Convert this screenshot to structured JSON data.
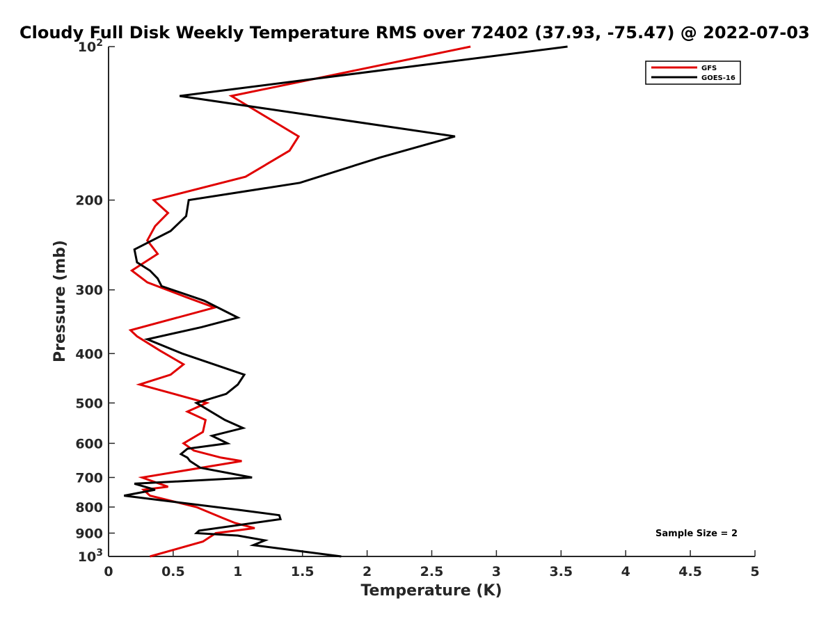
{
  "chart_data": {
    "type": "line",
    "title": "Cloudy Full Disk Weekly Temperature RMS over 72402 (37.93, -75.47) @ 2022-07-03",
    "xlabel": "Temperature (K)",
    "ylabel": "Pressure (mb)",
    "xlim": [
      0,
      5
    ],
    "ylim": [
      100,
      1000
    ],
    "y_scale": "log",
    "y_reversed": true,
    "x_ticks": [
      "0",
      "0.5",
      "1",
      "1.5",
      "2",
      "2.5",
      "3",
      "3.5",
      "4",
      "4.5",
      "5"
    ],
    "y_ticks": [
      {
        "value": 100,
        "base": "10",
        "exp": "2"
      },
      {
        "value": 200,
        "label": "200"
      },
      {
        "value": 300,
        "label": "300"
      },
      {
        "value": 400,
        "label": "400"
      },
      {
        "value": 500,
        "label": "500"
      },
      {
        "value": 600,
        "label": "600"
      },
      {
        "value": 700,
        "label": "700"
      },
      {
        "value": 800,
        "label": "800"
      },
      {
        "value": 900,
        "label": "900"
      },
      {
        "value": 1000,
        "base": "10",
        "exp": "3"
      }
    ],
    "legend_position": "top-right",
    "annotation": "Sample Size = 2",
    "series": [
      {
        "name": "GFS",
        "color": "#e00000",
        "points": [
          [
            2.8,
            100
          ],
          [
            0.95,
            125
          ],
          [
            1.47,
            150
          ],
          [
            1.4,
            160
          ],
          [
            1.06,
            180
          ],
          [
            0.35,
            200
          ],
          [
            0.46,
            212
          ],
          [
            0.36,
            225
          ],
          [
            0.3,
            240
          ],
          [
            0.38,
            255
          ],
          [
            0.18,
            275
          ],
          [
            0.3,
            290
          ],
          [
            0.6,
            310
          ],
          [
            0.82,
            325
          ],
          [
            0.17,
            360
          ],
          [
            0.22,
            370
          ],
          [
            0.4,
            395
          ],
          [
            0.58,
            420
          ],
          [
            0.48,
            440
          ],
          [
            0.24,
            460
          ],
          [
            0.76,
            500
          ],
          [
            0.61,
            520
          ],
          [
            0.75,
            540
          ],
          [
            0.73,
            570
          ],
          [
            0.58,
            600
          ],
          [
            0.66,
            620
          ],
          [
            0.87,
            640
          ],
          [
            1.03,
            650
          ],
          [
            0.26,
            700
          ],
          [
            0.46,
            730
          ],
          [
            0.27,
            740
          ],
          [
            0.32,
            760
          ],
          [
            0.68,
            800
          ],
          [
            0.88,
            840
          ],
          [
            0.98,
            860
          ],
          [
            1.13,
            880
          ],
          [
            0.83,
            900
          ],
          [
            0.73,
            935
          ],
          [
            0.32,
            1000
          ]
        ]
      },
      {
        "name": "GOES-16",
        "color": "#000000",
        "points": [
          [
            3.55,
            100
          ],
          [
            0.55,
            125
          ],
          [
            2.68,
            150
          ],
          [
            2.1,
            165
          ],
          [
            1.48,
            185
          ],
          [
            0.62,
            200
          ],
          [
            0.6,
            215
          ],
          [
            0.48,
            230
          ],
          [
            0.2,
            250
          ],
          [
            0.22,
            265
          ],
          [
            0.32,
            275
          ],
          [
            0.38,
            285
          ],
          [
            0.41,
            295
          ],
          [
            0.74,
            315
          ],
          [
            1.0,
            340
          ],
          [
            0.72,
            355
          ],
          [
            0.3,
            375
          ],
          [
            0.57,
            400
          ],
          [
            1.05,
            440
          ],
          [
            1.0,
            460
          ],
          [
            0.91,
            480
          ],
          [
            0.68,
            500
          ],
          [
            0.9,
            540
          ],
          [
            1.04,
            560
          ],
          [
            0.8,
            580
          ],
          [
            0.92,
            600
          ],
          [
            0.61,
            615
          ],
          [
            0.56,
            630
          ],
          [
            0.61,
            640
          ],
          [
            0.63,
            650
          ],
          [
            0.71,
            670
          ],
          [
            1.11,
            700
          ],
          [
            0.2,
            720
          ],
          [
            0.36,
            740
          ],
          [
            0.12,
            760
          ],
          [
            1.0,
            810
          ],
          [
            1.32,
            830
          ],
          [
            1.33,
            845
          ],
          [
            0.7,
            890
          ],
          [
            0.68,
            900
          ],
          [
            1.0,
            910
          ],
          [
            1.21,
            930
          ],
          [
            1.12,
            950
          ],
          [
            1.8,
            1000
          ]
        ]
      }
    ]
  }
}
